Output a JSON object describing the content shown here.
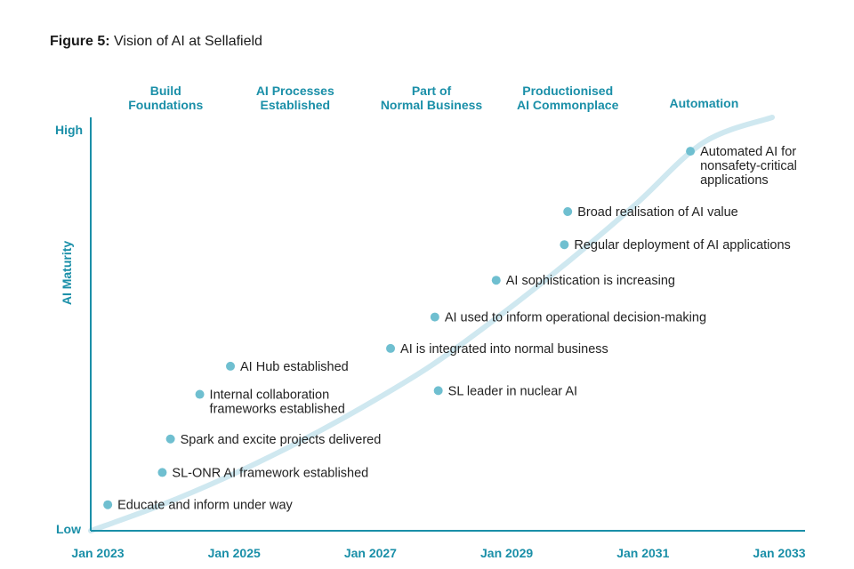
{
  "title": {
    "label": "Figure 5:",
    "text": "Vision of AI at Sellafield"
  },
  "chart_data": {
    "type": "scatter",
    "title": "Figure 5: Vision of AI at Sellafield",
    "xlabel": "",
    "ylabel": "AI Maturity",
    "y_tick_labels": {
      "low": "Low",
      "high": "High"
    },
    "x_ticks": [
      "Jan 2023",
      "Jan 2025",
      "Jan 2027",
      "Jan 2029",
      "Jan 2031",
      "Jan 2033"
    ],
    "xlim": [
      2023,
      2033
    ],
    "ylim": [
      0,
      100
    ],
    "phases": [
      {
        "lines": [
          "Build",
          "Foundations"
        ],
        "x": 2024.1
      },
      {
        "lines": [
          "AI Processes",
          "Established"
        ],
        "x": 2026.0
      },
      {
        "lines": [
          "Part of",
          "Normal Business"
        ],
        "x": 2028.0
      },
      {
        "lines": [
          "Productionised",
          "AI Commonplace"
        ],
        "x": 2030.0
      },
      {
        "lines": [
          "Automation"
        ],
        "x": 2032.0
      }
    ],
    "trend_curve": [
      [
        2023.0,
        0
      ],
      [
        2024.0,
        6
      ],
      [
        2025.0,
        13
      ],
      [
        2026.0,
        21
      ],
      [
        2027.0,
        30
      ],
      [
        2028.0,
        40
      ],
      [
        2029.0,
        52
      ],
      [
        2030.0,
        65
      ],
      [
        2031.0,
        79
      ],
      [
        2032.0,
        94
      ],
      [
        2033.0,
        100
      ]
    ],
    "milestones": [
      {
        "x": 2023.25,
        "y": 6.3,
        "lines": [
          "Educate and inform under way"
        ]
      },
      {
        "x": 2024.05,
        "y": 14.1,
        "lines": [
          "SL-ONR AI framework established"
        ]
      },
      {
        "x": 2024.17,
        "y": 22.2,
        "lines": [
          "Spark and excite projects delivered"
        ]
      },
      {
        "x": 2024.6,
        "y": 33.0,
        "lines": [
          "Internal collaboration",
          "frameworks established"
        ]
      },
      {
        "x": 2025.05,
        "y": 39.8,
        "lines": [
          "AI Hub established"
        ]
      },
      {
        "x": 2028.1,
        "y": 33.9,
        "lines": [
          "SL leader in nuclear AI"
        ]
      },
      {
        "x": 2027.4,
        "y": 44.1,
        "lines": [
          "AI is integrated into normal business"
        ]
      },
      {
        "x": 2028.05,
        "y": 51.7,
        "lines": [
          "AI used to inform operational decision-making"
        ]
      },
      {
        "x": 2028.95,
        "y": 60.6,
        "lines": [
          "AI sophistication is increasing"
        ]
      },
      {
        "x": 2029.95,
        "y": 69.2,
        "lines": [
          "Regular deployment of AI applications"
        ]
      },
      {
        "x": 2030.0,
        "y": 77.2,
        "lines": [
          "Broad realisation of AI value"
        ]
      },
      {
        "x": 2031.8,
        "y": 91.8,
        "lines": [
          "Automated AI for",
          "nonsafety-critical",
          "applications"
        ]
      }
    ],
    "colors": {
      "accent": "#1a8fa8",
      "dot": "#6fbfd0",
      "curve": "#cfe8f0",
      "text": "#222222",
      "axis": "#1a8fa8"
    }
  }
}
